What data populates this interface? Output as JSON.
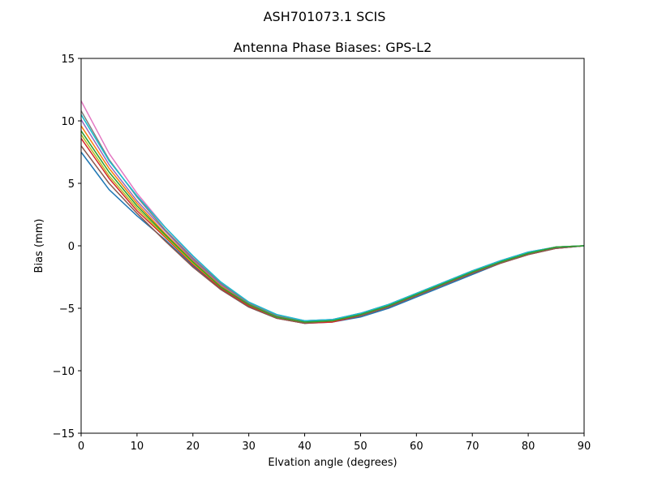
{
  "figure": {
    "suptitle": "ASH701073.1      SCIS"
  },
  "chart_data": {
    "type": "line",
    "title": "Antenna Phase Biases: GPS-L2",
    "xlabel": "Elvation angle (degrees)",
    "ylabel": "Bias (mm)",
    "xlim": [
      0,
      90
    ],
    "ylim": [
      -15,
      15
    ],
    "xticks": [
      0,
      10,
      20,
      30,
      40,
      50,
      60,
      70,
      80,
      90
    ],
    "yticks": [
      -15,
      -10,
      -5,
      0,
      5,
      10,
      15
    ],
    "grid": false,
    "x": [
      0,
      5,
      10,
      15,
      20,
      25,
      30,
      35,
      40,
      45,
      50,
      55,
      60,
      65,
      70,
      75,
      80,
      85,
      90
    ],
    "series": [
      {
        "color": "#1f77b4",
        "values": [
          7.5,
          4.5,
          2.4,
          0.5,
          -1.6,
          -3.5,
          -4.9,
          -5.8,
          -6.2,
          -6.1,
          -5.7,
          -5.0,
          -4.1,
          -3.2,
          -2.3,
          -1.4,
          -0.7,
          -0.2,
          0.0
        ]
      },
      {
        "color": "#d62728",
        "values": [
          8.6,
          5.4,
          2.8,
          0.7,
          -1.5,
          -3.4,
          -4.8,
          -5.8,
          -6.2,
          -6.1,
          -5.6,
          -4.9,
          -4.0,
          -3.1,
          -2.2,
          -1.4,
          -0.7,
          -0.2,
          0.0
        ]
      },
      {
        "color": "#8c564b",
        "values": [
          8.0,
          5.0,
          2.6,
          0.4,
          -1.7,
          -3.5,
          -4.9,
          -5.8,
          -6.2,
          -6.0,
          -5.6,
          -4.9,
          -4.0,
          -3.1,
          -2.2,
          -1.4,
          -0.7,
          -0.2,
          0.0
        ]
      },
      {
        "color": "#bcbd22",
        "values": [
          8.9,
          5.6,
          3.0,
          0.8,
          -1.4,
          -3.3,
          -4.7,
          -5.7,
          -6.1,
          -6.0,
          -5.5,
          -4.8,
          -3.9,
          -3.0,
          -2.1,
          -1.3,
          -0.6,
          -0.1,
          0.0
        ]
      },
      {
        "color": "#ff7f0e",
        "values": [
          9.6,
          6.2,
          3.4,
          1.0,
          -1.2,
          -3.2,
          -4.7,
          -5.7,
          -6.1,
          -6.0,
          -5.5,
          -4.8,
          -3.9,
          -3.0,
          -2.1,
          -1.3,
          -0.6,
          -0.1,
          0.0
        ]
      },
      {
        "color": "#9467bd",
        "values": [
          10.1,
          6.5,
          3.6,
          1.2,
          -1.1,
          -3.1,
          -4.6,
          -5.6,
          -6.1,
          -5.9,
          -5.5,
          -4.8,
          -3.9,
          -3.0,
          -2.1,
          -1.3,
          -0.6,
          -0.1,
          0.0
        ]
      },
      {
        "color": "#e377c2",
        "values": [
          11.6,
          7.4,
          4.2,
          1.5,
          -0.9,
          -2.9,
          -4.5,
          -5.5,
          -6.0,
          -5.9,
          -5.4,
          -4.7,
          -3.8,
          -2.9,
          -2.0,
          -1.2,
          -0.5,
          -0.1,
          0.0
        ]
      },
      {
        "color": "#7f7f7f",
        "values": [
          10.8,
          6.9,
          3.9,
          1.3,
          -1.0,
          -3.0,
          -4.6,
          -5.6,
          -6.0,
          -5.9,
          -5.4,
          -4.7,
          -3.8,
          -2.9,
          -2.0,
          -1.2,
          -0.5,
          -0.1,
          0.0
        ]
      },
      {
        "color": "#17becf",
        "values": [
          10.5,
          6.8,
          4.0,
          1.5,
          -0.8,
          -2.9,
          -4.5,
          -5.5,
          -6.0,
          -5.9,
          -5.4,
          -4.7,
          -3.8,
          -2.9,
          -2.0,
          -1.2,
          -0.5,
          -0.1,
          0.0
        ]
      },
      {
        "color": "#2ca02c",
        "values": [
          9.2,
          5.9,
          3.2,
          0.9,
          -1.3,
          -3.3,
          -4.7,
          -5.7,
          -6.1,
          -6.0,
          -5.5,
          -4.8,
          -3.9,
          -3.0,
          -2.1,
          -1.3,
          -0.6,
          -0.1,
          0.0
        ]
      }
    ]
  }
}
